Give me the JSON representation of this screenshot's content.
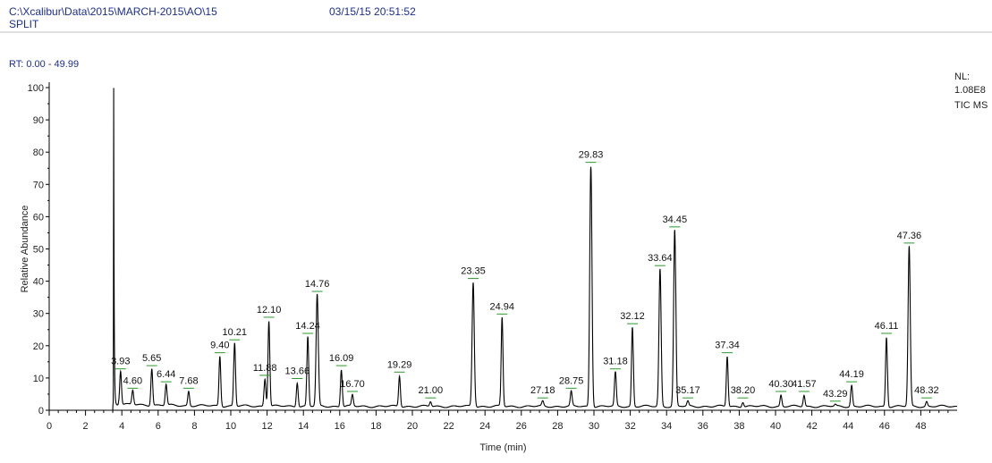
{
  "header": {
    "file_path": "C:\\Xcalibur\\Data\\2015\\MARCH-2015\\AO\\15",
    "scan_mode": "SPLIT",
    "datetime": "03/15/15 20:51:52",
    "rt_range": "RT: 0.00 - 49.99"
  },
  "side_labels": {
    "nl_label": "NL:",
    "nl_value": "1.08E8",
    "trace": "TIC  MS"
  },
  "chart_data": {
    "type": "line",
    "xlabel": "Time (min)",
    "ylabel": "Relative Abundance",
    "xlim": [
      0,
      50
    ],
    "ylim": [
      0,
      100
    ],
    "x_ticks": [
      0,
      2,
      4,
      6,
      8,
      10,
      12,
      14,
      16,
      18,
      20,
      22,
      24,
      26,
      28,
      30,
      32,
      34,
      36,
      38,
      40,
      42,
      44,
      46,
      48
    ],
    "y_ticks": [
      0,
      10,
      20,
      30,
      40,
      50,
      60,
      70,
      80,
      90,
      100
    ],
    "grid": false,
    "line_color": "#000000",
    "label_marker_color": "#2a9a2a",
    "solvent_peak": {
      "rt": 3.55,
      "height": 100
    },
    "peaks": [
      {
        "rt": 3.93,
        "height": 12,
        "label": "3.93"
      },
      {
        "rt": 4.6,
        "height": 6,
        "label": "4.60"
      },
      {
        "rt": 5.65,
        "height": 13,
        "label": "5.65"
      },
      {
        "rt": 6.44,
        "height": 8,
        "label": "6.44"
      },
      {
        "rt": 7.68,
        "height": 6,
        "label": "7.68"
      },
      {
        "rt": 9.4,
        "height": 17,
        "label": "9.40"
      },
      {
        "rt": 10.21,
        "height": 21,
        "label": "10.21"
      },
      {
        "rt": 11.88,
        "height": 10,
        "label": "11.88"
      },
      {
        "rt": 12.1,
        "height": 28,
        "label": "12.10"
      },
      {
        "rt": 13.66,
        "height": 9,
        "label": "13.66"
      },
      {
        "rt": 14.24,
        "height": 23,
        "label": "14.24"
      },
      {
        "rt": 14.76,
        "height": 36,
        "label": "14.76"
      },
      {
        "rt": 16.09,
        "height": 13,
        "label": "16.09"
      },
      {
        "rt": 16.7,
        "height": 5,
        "label": "16.70"
      },
      {
        "rt": 19.29,
        "height": 11,
        "label": "19.29"
      },
      {
        "rt": 21.0,
        "height": 3,
        "label": "21.00"
      },
      {
        "rt": 23.35,
        "height": 40,
        "label": "23.35"
      },
      {
        "rt": 24.94,
        "height": 29,
        "label": "24.94"
      },
      {
        "rt": 27.18,
        "height": 3,
        "label": "27.18"
      },
      {
        "rt": 28.75,
        "height": 6,
        "label": "28.75"
      },
      {
        "rt": 29.83,
        "height": 76,
        "label": "29.83"
      },
      {
        "rt": 31.18,
        "height": 12,
        "label": "31.18"
      },
      {
        "rt": 32.12,
        "height": 26,
        "label": "32.12"
      },
      {
        "rt": 33.64,
        "height": 44,
        "label": "33.64"
      },
      {
        "rt": 34.45,
        "height": 56,
        "label": "34.45"
      },
      {
        "rt": 35.17,
        "height": 3,
        "label": "35.17"
      },
      {
        "rt": 37.34,
        "height": 17,
        "label": "37.34"
      },
      {
        "rt": 38.2,
        "height": 3,
        "label": "38.20"
      },
      {
        "rt": 40.3,
        "height": 5,
        "label": "40.30"
      },
      {
        "rt": 41.57,
        "height": 5,
        "label": "41.57"
      },
      {
        "rt": 43.29,
        "height": 2,
        "label": "43.29"
      },
      {
        "rt": 44.19,
        "height": 8,
        "label": "44.19"
      },
      {
        "rt": 46.11,
        "height": 23,
        "label": "46.11"
      },
      {
        "rt": 47.36,
        "height": 51,
        "label": "47.36"
      },
      {
        "rt": 48.32,
        "height": 3,
        "label": "48.32"
      }
    ]
  }
}
